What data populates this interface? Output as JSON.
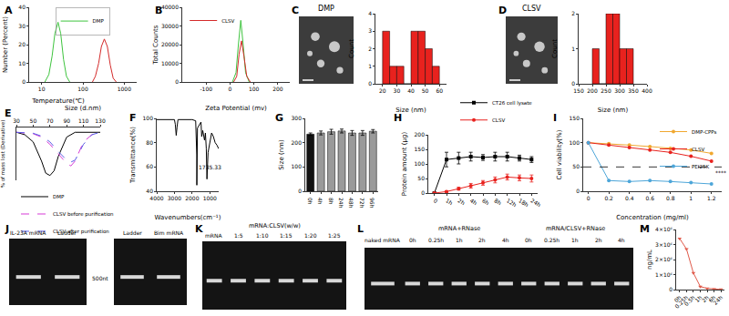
{
  "chart_data": [
    {
      "panel": "A",
      "type": "line",
      "x_title": "Size (d.nm)",
      "y_title": "Number (Percent)",
      "log": "x",
      "xlim": [
        5,
        2000
      ],
      "xticks": [
        10,
        100,
        1000
      ],
      "ylim": [
        0,
        40
      ],
      "yticks": [
        0,
        10,
        20,
        30,
        40
      ],
      "legend": "top",
      "series": [
        {
          "name": "DMP",
          "color": "#3ec43e",
          "x": [
            12,
            15,
            18,
            21,
            25,
            29,
            34,
            40,
            48
          ],
          "values": [
            0,
            4,
            14,
            26,
            32,
            26,
            12,
            3,
            0
          ]
        },
        {
          "color": "#d42a2a",
          "x": [
            170,
            200,
            240,
            280,
            330,
            390,
            460,
            540,
            640
          ],
          "values": [
            0,
            3,
            10,
            19,
            23,
            19,
            9,
            2,
            0
          ]
        }
      ]
    },
    {
      "panel": "B",
      "type": "line",
      "x_title": "Zeta Potential (mv)",
      "y_title": "Total Counts",
      "xlim": [
        -200,
        250
      ],
      "xticks": [
        -100,
        0,
        100,
        200
      ],
      "ylim": [
        0,
        40000
      ],
      "yticks": [
        0,
        10000,
        20000,
        30000,
        40000
      ],
      "legend": "top left",
      "series": [
        {
          "color": "#3ec43e",
          "x": [
            10,
            25,
            35,
            45,
            55,
            65,
            80
          ],
          "values": [
            0,
            5000,
            20000,
            33000,
            20000,
            5000,
            0
          ]
        },
        {
          "name": "CLSV",
          "color": "#d42a2a",
          "x": [
            15,
            28,
            38,
            48,
            58,
            70,
            85
          ],
          "values": [
            0,
            3000,
            15000,
            22000,
            14000,
            3000,
            0
          ]
        }
      ]
    },
    {
      "panel": "C",
      "type": "histogram",
      "title": "DMP",
      "x_title": "Size (nm)",
      "y_title": "Count",
      "bins": [
        20,
        25,
        30,
        35,
        40,
        45,
        50,
        55,
        60
      ],
      "values": [
        3,
        1,
        1,
        0,
        3,
        3,
        2,
        1
      ],
      "color": "#e8221e",
      "xlim": [
        15,
        65
      ],
      "xticks": [
        20,
        30,
        40,
        50,
        60
      ],
      "ylim": [
        0,
        4
      ],
      "yticks": [
        0,
        1,
        2,
        3,
        4
      ]
    },
    {
      "panel": "D",
      "type": "histogram",
      "title": "CLSV",
      "x_title": "Size (nm)",
      "y_title": "Count",
      "bins": [
        200,
        225,
        250,
        275,
        300,
        325,
        350
      ],
      "values": [
        1,
        0,
        2,
        2,
        1,
        1
      ],
      "color": "#e8221e",
      "xlim": [
        150,
        400
      ],
      "xticks": [
        150,
        200,
        250,
        300,
        350,
        400
      ],
      "ylim": [
        0,
        2
      ],
      "yticks": [
        0,
        1,
        2
      ]
    },
    {
      "panel": "E",
      "type": "line",
      "x_title": "Temperature(℃)",
      "y_title": "% of mass lost (Derivative)",
      "tick_labels": "x",
      "xlim": [
        30,
        130
      ],
      "xticks": [
        30,
        50,
        70,
        90,
        110,
        130
      ],
      "ylim": [
        -10,
        1
      ],
      "yticks": [],
      "legend": "bottom",
      "series": [
        {
          "name": "DMP",
          "color": "#000000",
          "line_style": "solid",
          "x": [
            30,
            40,
            50,
            60,
            65,
            70,
            75,
            80,
            90,
            100,
            130
          ],
          "values": [
            0,
            -0.5,
            -2,
            -6,
            -8.5,
            -9,
            -8,
            -5,
            -1,
            0,
            0
          ]
        },
        {
          "name": "CLSV before purification",
          "color": "#d63bd6",
          "line_style": "dashed",
          "x": [
            30,
            50,
            60,
            70,
            80,
            90,
            95,
            100,
            110,
            120,
            130
          ],
          "values": [
            0,
            -0.3,
            -1,
            -2.5,
            -4.5,
            -6.5,
            -7,
            -6,
            -2,
            -0.5,
            0
          ]
        },
        {
          "name": "CLSV after purification",
          "color": "#5a5ae6",
          "line_style": "dashed",
          "x": [
            30,
            50,
            60,
            70,
            80,
            90,
            95,
            100,
            110,
            120,
            130
          ],
          "values": [
            0,
            -0.2,
            -0.8,
            -2,
            -4,
            -5.8,
            -6.2,
            -5.8,
            -2.5,
            -0.5,
            0
          ]
        }
      ]
    },
    {
      "panel": "F",
      "type": "line",
      "x_title": "Wavenumbers(cm⁻¹)",
      "y_title": "Transmittance(%)",
      "xlim": [
        4000,
        500
      ],
      "xticks": [
        4000,
        3000,
        2000,
        1000
      ],
      "ylim": [
        40,
        100
      ],
      "yticks": [
        40,
        60,
        80,
        100
      ],
      "series": [
        {
          "color": "#000000",
          "x": [
            4000,
            3500,
            3000,
            2950,
            2900,
            2850,
            2800,
            2000,
            1800,
            1740,
            1735,
            1700,
            1500,
            1460,
            1400,
            1300,
            1250,
            1200,
            1163,
            1100,
            1000,
            900,
            800,
            700,
            600,
            500
          ],
          "values": [
            99,
            99,
            99,
            95,
            86,
            93,
            99,
            99,
            98,
            70,
            45,
            92,
            97,
            85,
            90,
            82,
            88,
            75,
            50,
            72,
            80,
            88,
            85,
            80,
            78,
            75
          ]
        }
      ],
      "annotations": [
        {
          "text": "1735.33",
          "x": 1735,
          "y": 60
        }
      ]
    },
    {
      "panel": "G",
      "type": "bar",
      "y_title": "Size (nm)",
      "categories": [
        "0h",
        "4h",
        "8h",
        "24h",
        "48h",
        "72h",
        "96h"
      ],
      "values": [
        235,
        240,
        245,
        248,
        240,
        240,
        247
      ],
      "errors": [
        5,
        8,
        10,
        8,
        10,
        10,
        7
      ],
      "colors": [
        "#111111",
        "#9a9a9a",
        "#9a9a9a",
        "#9a9a9a",
        "#9a9a9a",
        "#9a9a9a",
        "#9a9a9a"
      ],
      "ylim": [
        0,
        300
      ],
      "yticks": [
        0,
        100,
        200,
        300
      ]
    },
    {
      "panel": "H",
      "type": "line",
      "y_title": "Protein amount (μg)",
      "categories": [
        "0",
        "1h",
        "2h",
        "4h",
        "6h",
        "8h",
        "12h",
        "18h",
        "24h"
      ],
      "ylim": [
        0,
        200
      ],
      "yticks": [
        0,
        50,
        100,
        150,
        200
      ],
      "legend": "above",
      "series": [
        {
          "name": "CT26 cell lysate",
          "color": "#000000",
          "marker": "square",
          "values": [
            0,
            115,
            120,
            125,
            122,
            125,
            125,
            120,
            115
          ],
          "errors": [
            0,
            25,
            20,
            15,
            10,
            15,
            15,
            10,
            10
          ]
        },
        {
          "name": "CLSV",
          "color": "#e8221e",
          "marker": "circle",
          "values": [
            0,
            5,
            15,
            25,
            35,
            45,
            55,
            52,
            50
          ],
          "errors": [
            0,
            3,
            5,
            8,
            8,
            10,
            10,
            10,
            12
          ]
        }
      ]
    },
    {
      "panel": "I",
      "type": "line",
      "x_title": "Concentration (mg/ml)",
      "y_title": "Cell viability(%)",
      "xlim": [
        -0.05,
        1.3
      ],
      "xticks": [
        0,
        0.2,
        0.4,
        0.6,
        0.8,
        1,
        1.2
      ],
      "ylim": [
        0,
        150
      ],
      "yticks": [
        0,
        50,
        100,
        150
      ],
      "legend": "top right",
      "threshold": 50,
      "series": [
        {
          "name": "DMP-CPPs",
          "color": "#f0a830",
          "marker": "circle",
          "x": [
            0,
            0.2,
            0.4,
            0.6,
            0.8,
            1,
            1.2
          ],
          "values": [
            100,
            98,
            95,
            92,
            88,
            85,
            78
          ]
        },
        {
          "name": "CLSV",
          "color": "#e8221e",
          "marker": "circle",
          "x": [
            0,
            0.2,
            0.4,
            0.6,
            0.8,
            1,
            1.2
          ],
          "values": [
            100,
            95,
            90,
            85,
            80,
            72,
            62
          ]
        },
        {
          "name": "PEI25K",
          "color": "#4da6d9",
          "marker": "circle",
          "x": [
            0,
            0.2,
            0.4,
            0.6,
            0.8,
            1,
            1.2
          ],
          "values": [
            100,
            22,
            20,
            22,
            20,
            18,
            15
          ]
        }
      ],
      "annotations": [
        {
          "text": "****",
          "x": 1.22,
          "y": 38
        }
      ]
    },
    {
      "panel": "M",
      "type": "line",
      "y_title": "ng/mL",
      "categories": [
        "0h",
        "0.25h",
        "0.5h",
        "1h",
        "2h",
        "6h",
        "24h"
      ],
      "values": [
        3400000,
        2700000,
        1100000,
        200000,
        80000,
        30000,
        10000
      ],
      "color": "#e05a4a",
      "marker": "triangle-down",
      "ylim": [
        0,
        4000000
      ],
      "yticks": [
        0,
        {
          "value": 1000000,
          "label": "1×10⁶"
        },
        {
          "value": 2000000,
          "label": "2×10⁶"
        },
        {
          "value": 3000000,
          "label": "3×10⁶"
        },
        {
          "value": 4000000,
          "label": "4×10⁶"
        }
      ]
    }
  ],
  "gels": [
    {
      "panel": "J",
      "images": [
        {
          "lanes": [
            "IL-23A mRNA",
            "Ladder"
          ]
        },
        {
          "lanes": [
            "Ladder",
            "Bim mRNA"
          ]
        }
      ],
      "size_marker": "500nt"
    },
    {
      "panel": "K",
      "header": "mRNA:CLSV(w/w)",
      "lanes": [
        "mRNA",
        "1:5",
        "1:10",
        "1:15",
        "1:20",
        "1:25"
      ]
    },
    {
      "panel": "L",
      "lanes": [
        "naked mRNA"
      ],
      "groups": [
        {
          "header": "mRNA+RNase",
          "lanes": [
            "0h",
            "0.25h",
            "1h",
            "2h",
            "4h"
          ]
        },
        {
          "header": "mRNA/CLSV+RNase",
          "lanes": [
            "0h",
            "0.25h",
            "1h",
            "2h",
            "4h"
          ]
        }
      ]
    }
  ]
}
